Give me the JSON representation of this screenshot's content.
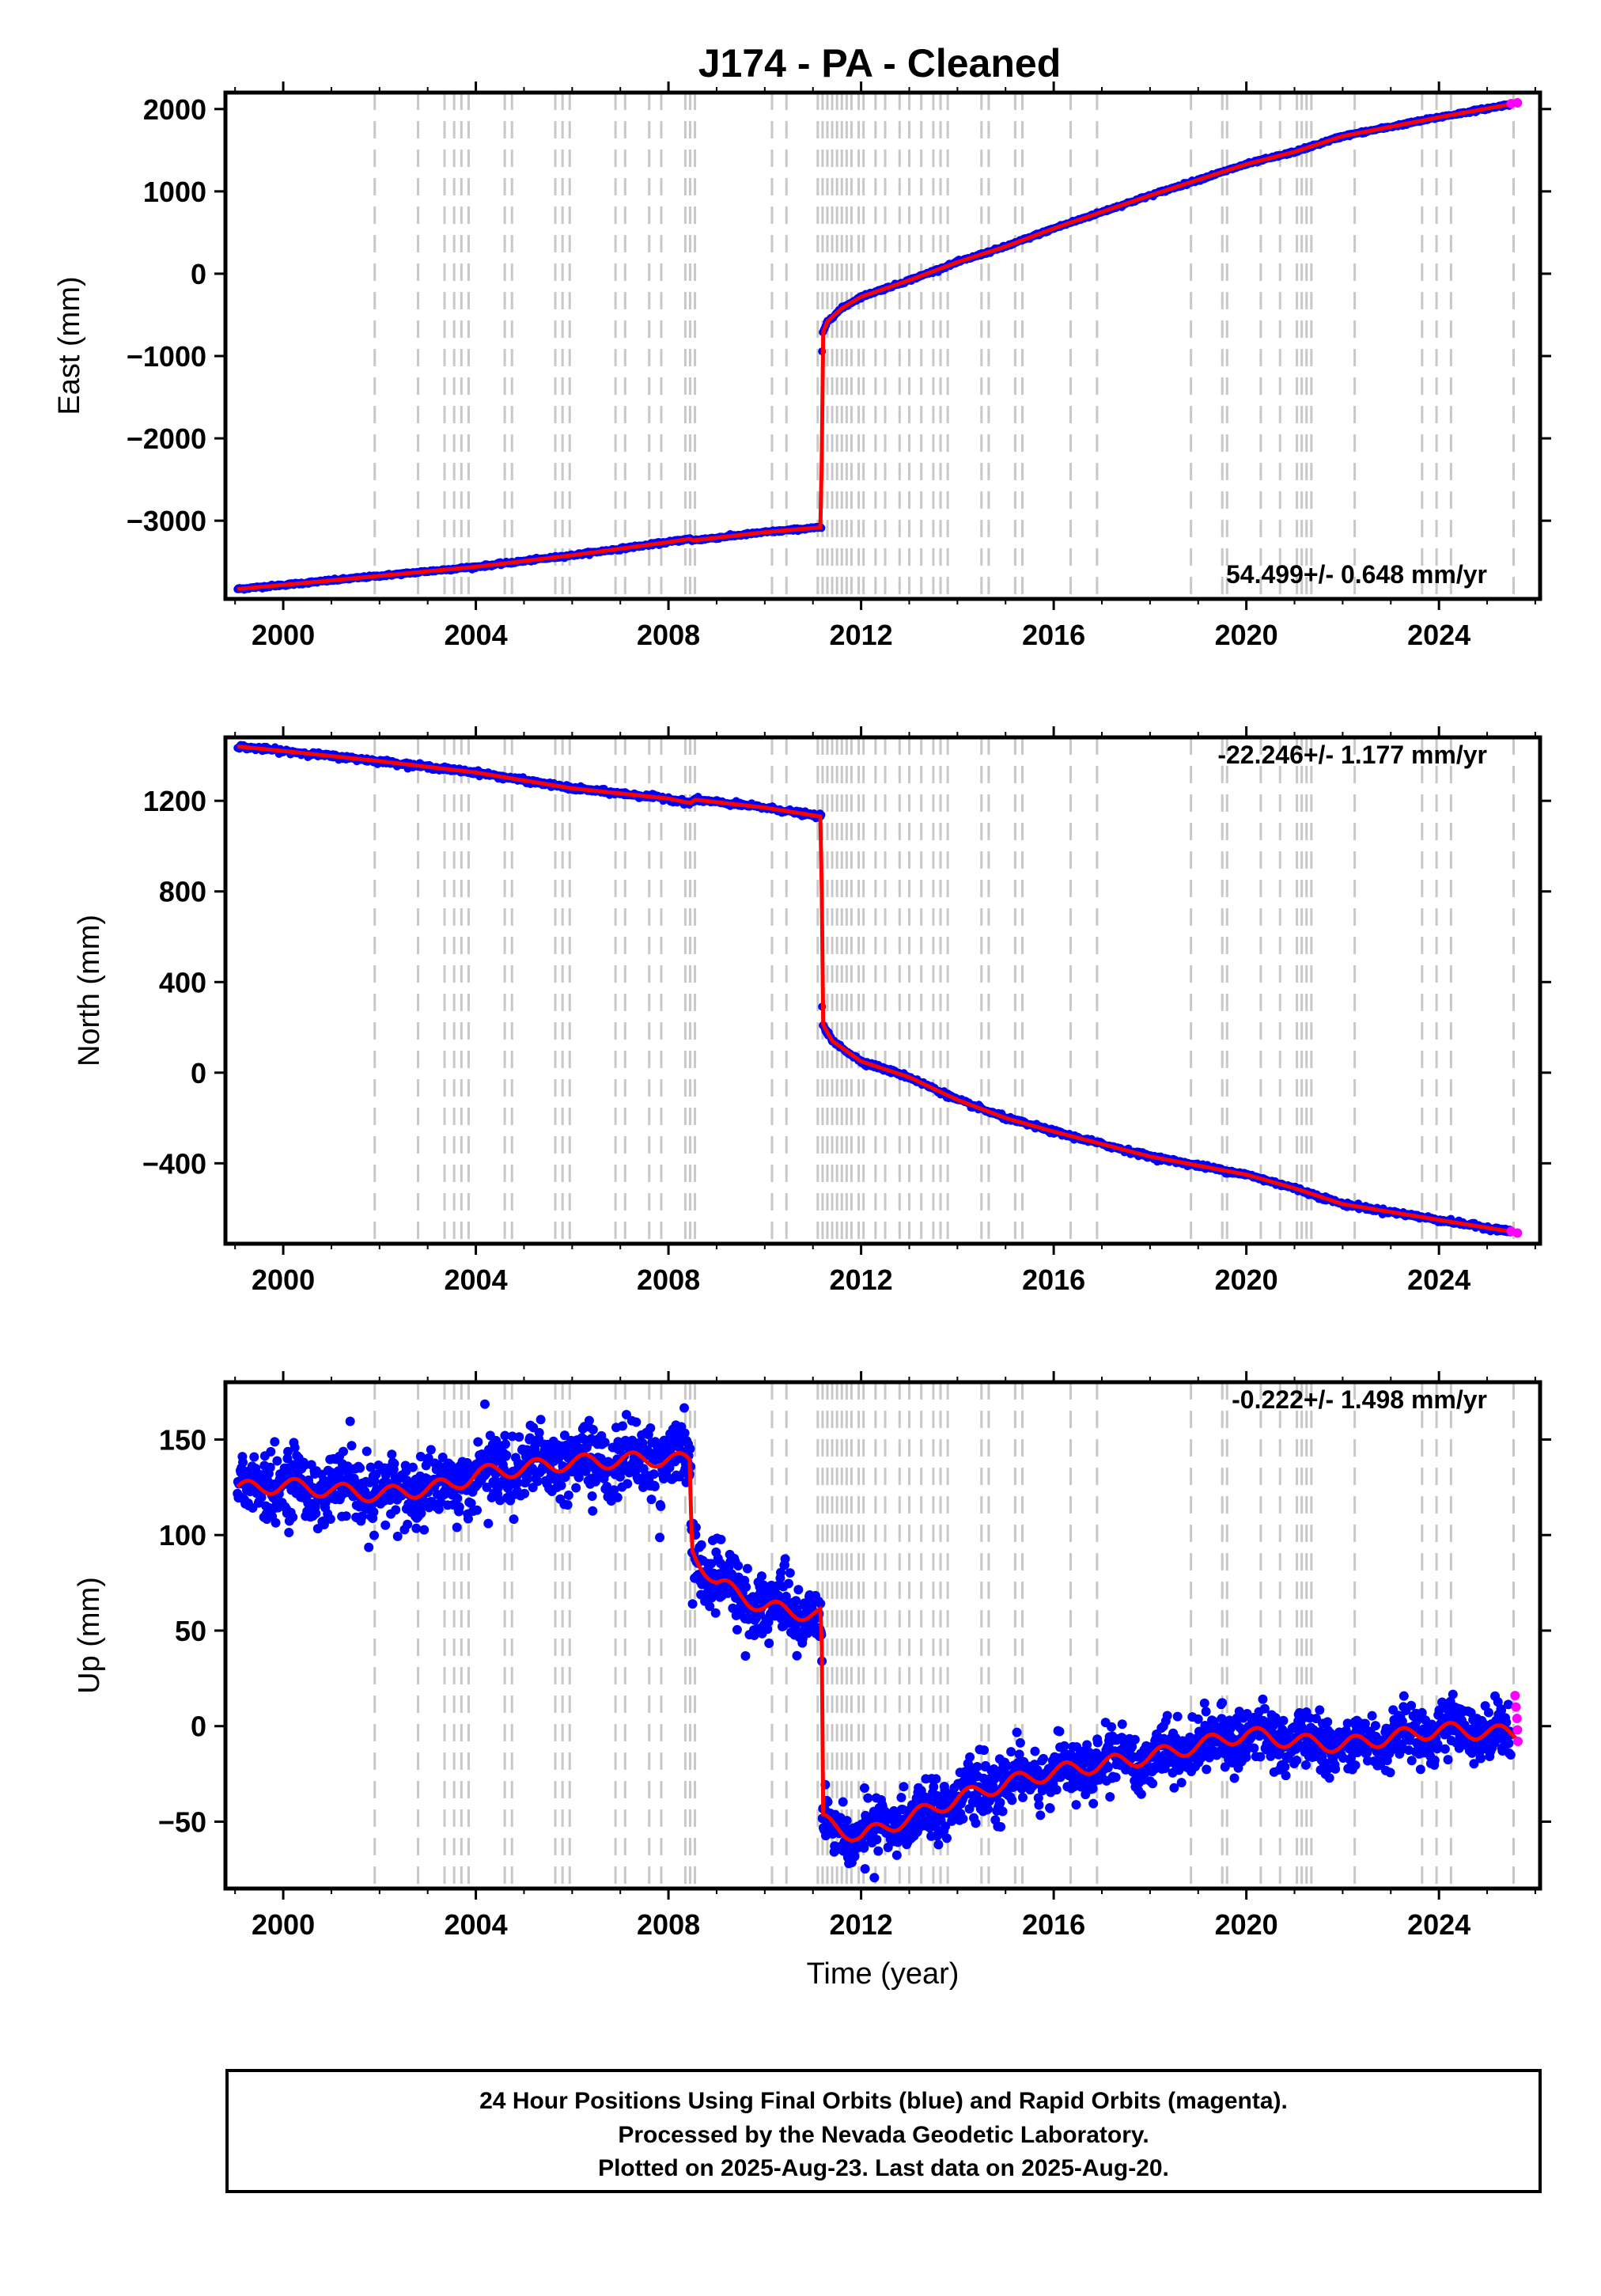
{
  "title": "J174  - PA - Cleaned",
  "footer": {
    "line1": "24 Hour Positions Using Final Orbits (blue) and Rapid Orbits (magenta).",
    "line2": "Processed by the Nevada Geodetic Laboratory.",
    "line3": "Plotted on 2025-Aug-23. Last data on 2025-Aug-20."
  },
  "colors": {
    "final_orbits": "#0000ff",
    "rapid_orbits": "#ff00ff",
    "model": "#ff0000",
    "event_lines": "#c8c8c8"
  },
  "chart_data": [
    {
      "type": "scatter",
      "id": "east",
      "ylabel": "East (mm)",
      "xlabel": "",
      "rate_label": "54.499+/- 0.648 mm/yr",
      "xlim": [
        1998.8,
        2026.1
      ],
      "ylim": [
        -3950,
        2200
      ],
      "xticks": [
        2000,
        2004,
        2008,
        2012,
        2016,
        2020,
        2024
      ],
      "xtick_labels": [
        "2000",
        "2004",
        "2008",
        "2012",
        "2016",
        "2020",
        "2024"
      ],
      "yticks": [
        -3000,
        -2000,
        -1000,
        0,
        1000,
        2000
      ],
      "ytick_labels": [
        "−3000",
        "−2000",
        "−1000",
        "0",
        "1000",
        "2000"
      ],
      "grid": false,
      "scatter_noise": 8,
      "trend": [
        [
          1999.05,
          -3830
        ],
        [
          2000,
          -3780
        ],
        [
          2002,
          -3670
        ],
        [
          2004,
          -3560
        ],
        [
          2006,
          -3420
        ],
        [
          2008,
          -3260
        ],
        [
          2008.45,
          -3220
        ],
        [
          2008.5,
          -3240
        ],
        [
          2010,
          -3140
        ],
        [
          2011.18,
          -3080
        ],
        [
          2011.19,
          -750
        ],
        [
          2011.3,
          -580
        ],
        [
          2011.6,
          -420
        ],
        [
          2012,
          -280
        ],
        [
          2013,
          -80
        ],
        [
          2014,
          140
        ],
        [
          2015,
          330
        ],
        [
          2016,
          550
        ],
        [
          2018,
          950
        ],
        [
          2020,
          1330
        ],
        [
          2021,
          1480
        ],
        [
          2022,
          1670
        ],
        [
          2024,
          1900
        ],
        [
          2025.6,
          2070
        ]
      ],
      "rapid_points": [
        [
          2025.5,
          2065
        ],
        [
          2025.63,
          2075
        ]
      ]
    },
    {
      "type": "scatter",
      "id": "north",
      "ylabel": "North (mm)",
      "xlabel": "",
      "rate_label": "-22.246+/- 1.177 mm/yr",
      "xlim": [
        1998.8,
        2026.1
      ],
      "ylim": [
        -755,
        1480
      ],
      "xticks": [
        2000,
        2004,
        2008,
        2012,
        2016,
        2020,
        2024
      ],
      "xtick_labels": [
        "2000",
        "2004",
        "2008",
        "2012",
        "2016",
        "2020",
        "2024"
      ],
      "yticks": [
        -400,
        0,
        400,
        800,
        1200
      ],
      "ytick_labels": [
        "−400",
        "0",
        "400",
        "800",
        "1200"
      ],
      "grid": false,
      "scatter_noise": 5,
      "trend": [
        [
          1999.05,
          1440
        ],
        [
          2000,
          1420
        ],
        [
          2002,
          1375
        ],
        [
          2004,
          1325
        ],
        [
          2006,
          1255
        ],
        [
          2008,
          1210
        ],
        [
          2008.45,
          1190
        ],
        [
          2008.55,
          1205
        ],
        [
          2010,
          1170
        ],
        [
          2011.18,
          1130
        ],
        [
          2011.19,
          220
        ],
        [
          2011.4,
          140
        ],
        [
          2012,
          50
        ],
        [
          2013,
          -20
        ],
        [
          2014,
          -120
        ],
        [
          2015,
          -200
        ],
        [
          2016,
          -260
        ],
        [
          2018,
          -370
        ],
        [
          2020,
          -450
        ],
        [
          2021,
          -510
        ],
        [
          2022,
          -580
        ],
        [
          2024,
          -650
        ],
        [
          2025.6,
          -705
        ]
      ],
      "rapid_points": [
        [
          2025.5,
          -700
        ],
        [
          2025.63,
          -708
        ]
      ]
    },
    {
      "type": "scatter",
      "id": "up",
      "ylabel": "Up (mm)",
      "xlabel": "Time (year)",
      "rate_label": "-0.222+/- 1.498 mm/yr",
      "xlim": [
        1998.8,
        2026.1
      ],
      "ylim": [
        -85,
        180
      ],
      "xticks": [
        2000,
        2004,
        2008,
        2012,
        2016,
        2020,
        2024
      ],
      "xtick_labels": [
        "2000",
        "2004",
        "2008",
        "2012",
        "2016",
        "2020",
        "2024"
      ],
      "yticks": [
        -50,
        0,
        50,
        100,
        150
      ],
      "ytick_labels": [
        "−50",
        "0",
        "50",
        "100",
        "150"
      ],
      "grid": false,
      "scatter_noise": 14,
      "trend": [
        [
          1999.05,
          124
        ],
        [
          2000,
          126
        ],
        [
          2002,
          121
        ],
        [
          2003.5,
          126
        ],
        [
          2004,
          132
        ],
        [
          2006,
          138
        ],
        [
          2008,
          140
        ],
        [
          2008.45,
          138
        ],
        [
          2008.48,
          92
        ],
        [
          2009,
          75
        ],
        [
          2010,
          62
        ],
        [
          2011.18,
          58
        ],
        [
          2011.2,
          -50
        ],
        [
          2012,
          -58
        ],
        [
          2013,
          -48
        ],
        [
          2014,
          -38
        ],
        [
          2015,
          -30
        ],
        [
          2016,
          -24
        ],
        [
          2017,
          -20
        ],
        [
          2018,
          -16
        ],
        [
          2019,
          -10
        ],
        [
          2020,
          -4
        ],
        [
          2021,
          -8
        ],
        [
          2022,
          -10
        ],
        [
          2023,
          -6
        ],
        [
          2024,
          -2
        ],
        [
          2025.6,
          -4
        ]
      ],
      "rapid_points": [
        [
          2025.58,
          16
        ],
        [
          2025.6,
          10
        ],
        [
          2025.62,
          4
        ],
        [
          2025.63,
          -2
        ],
        [
          2025.64,
          -8
        ]
      ]
    }
  ],
  "event_lines": [
    2001.9,
    2002.8,
    2003.35,
    2003.55,
    2003.7,
    2003.85,
    2004.6,
    2004.75,
    2005.65,
    2005.8,
    2005.95,
    2006.9,
    2007.1,
    2007.6,
    2007.85,
    2008.35,
    2008.45,
    2008.55,
    2010.15,
    2010.45,
    2011.1,
    2011.2,
    2011.3,
    2011.4,
    2011.5,
    2011.6,
    2011.7,
    2011.8,
    2011.95,
    2012.05,
    2012.3,
    2012.5,
    2012.8,
    2013.0,
    2013.25,
    2013.5,
    2013.65,
    2013.8,
    2014.5,
    2014.65,
    2015.2,
    2015.35,
    2016.35,
    2016.9,
    2018.85,
    2019.5,
    2019.6,
    2020.3,
    2020.7,
    2021.05,
    2021.15,
    2021.25,
    2021.35,
    2022.25,
    2023.65,
    2023.95,
    2024.25,
    2025.55
  ]
}
